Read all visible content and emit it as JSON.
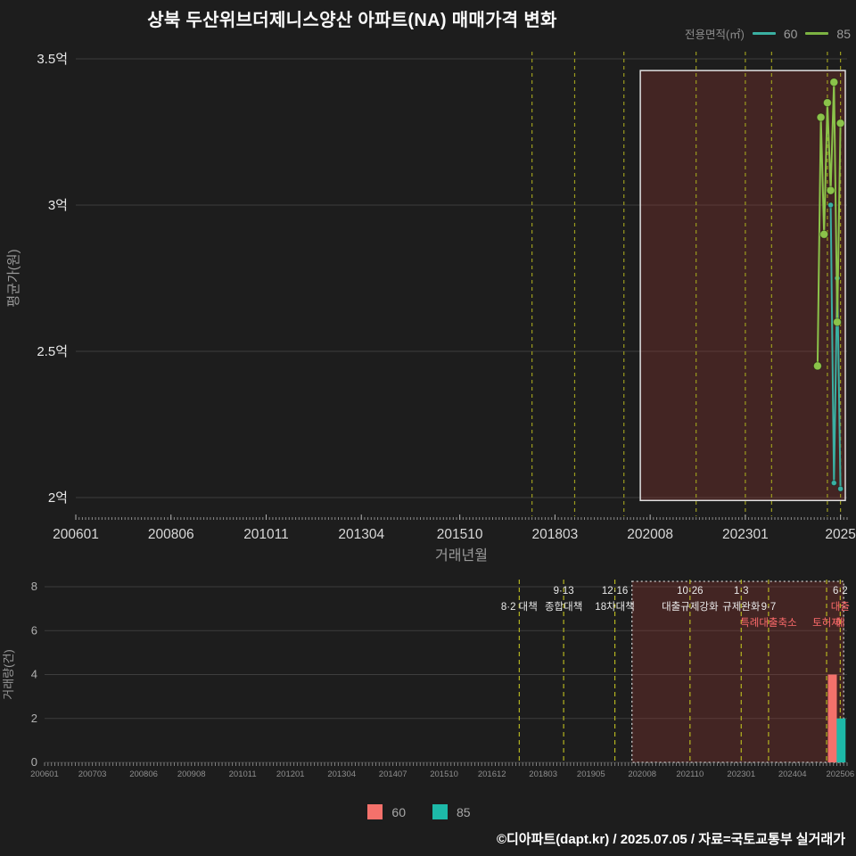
{
  "title": "상북 두산위브더제니스양산 아파트(NA) 매매가격 변화",
  "legend_top": {
    "label": "전용면적(㎡)",
    "items": [
      {
        "label": "60",
        "color": "#3ab0a2"
      },
      {
        "label": "85",
        "color": "#7cb342"
      }
    ]
  },
  "legend_bottom": {
    "items": [
      {
        "label": "60",
        "color": "#f4716b"
      },
      {
        "label": "85",
        "color": "#1db9a8"
      }
    ]
  },
  "footer": "©디아파트(dapt.kr) / 2025.07.05 / 자료=국토교통부 실거래가",
  "colors": {
    "background": "#1d1d1d",
    "gridline": "#3d3d3d",
    "policy_line": "#9c9c1e",
    "highlight_fill": "rgba(155,55,50,0.30)",
    "highlight_border": "#e0e0e0",
    "annotation_red": "#ff6b6b",
    "annotation_white": "#e8e8e8"
  },
  "events": [
    {
      "month": 201708,
      "lines": [
        {
          "row": 2,
          "text": "8·2 대책",
          "color": "#e8e8e8"
        }
      ]
    },
    {
      "month": 201809,
      "lines": [
        {
          "row": 1,
          "text": "9·13",
          "color": "#e8e8e8"
        },
        {
          "row": 2,
          "text": "종합대책",
          "color": "#e8e8e8"
        }
      ]
    },
    {
      "month": 201912,
      "lines": [
        {
          "row": 1,
          "text": "12·16",
          "color": "#e8e8e8"
        },
        {
          "row": 2,
          "text": "18차대책",
          "color": "#e8e8e8"
        }
      ]
    },
    {
      "month": 202110,
      "lines": [
        {
          "row": 1,
          "text": "10·26",
          "color": "#e8e8e8"
        },
        {
          "row": 2,
          "text": "대출규제강화",
          "color": "#e8e8e8"
        }
      ]
    },
    {
      "month": 202301,
      "lines": [
        {
          "row": 1,
          "text": "1·3",
          "color": "#e8e8e8"
        },
        {
          "row": 2,
          "text": "규제완화",
          "color": "#e8e8e8"
        }
      ]
    },
    {
      "month": 202309,
      "lines": [
        {
          "row": 2,
          "text": "9·7",
          "color": "#e8e8e8"
        },
        {
          "row": 3,
          "text": "특례대출축소",
          "color": "#ff6b6b"
        }
      ]
    },
    {
      "month": 202502,
      "lines": [
        {
          "row": 3,
          "text": "토허제",
          "color": "#ff6b6b"
        }
      ]
    },
    {
      "month": 202506,
      "lines": [
        {
          "row": 1,
          "text": "6·2",
          "color": "#e8e8e8"
        },
        {
          "row": 2,
          "text": "대출",
          "color": "#ff6b6b"
        },
        {
          "row": 3,
          "text": "해",
          "color": "#ff6b6b"
        }
      ]
    }
  ],
  "chart_data": [
    {
      "type": "line",
      "title": "",
      "xlabel": "거래년월",
      "ylabel": "평균가(원)",
      "x_domain": [
        200601,
        202508
      ],
      "ylim": [
        1.95,
        3.55
      ],
      "grid": true,
      "legend_position": "top-right",
      "y_ticks": [
        {
          "value": 2.0,
          "label": "2억"
        },
        {
          "value": 2.5,
          "label": "2.5억"
        },
        {
          "value": 3.0,
          "label": "3억"
        },
        {
          "value": 3.5,
          "label": "3.5억"
        }
      ],
      "x_ticks": [
        {
          "value": 200601,
          "label": "200601"
        },
        {
          "value": 200806,
          "label": "200806"
        },
        {
          "value": 201011,
          "label": "201011"
        },
        {
          "value": 201304,
          "label": "201304"
        },
        {
          "value": 201510,
          "label": "201510"
        },
        {
          "value": 201803,
          "label": "201803"
        },
        {
          "value": 202008,
          "label": "202008"
        },
        {
          "value": 202301,
          "label": "202301"
        },
        {
          "value": 202506,
          "label": "2025"
        }
      ],
      "highlight": {
        "x0": 202005,
        "x1": 202508,
        "y0": 1.99,
        "y1": 3.46
      },
      "series": [
        {
          "name": "60",
          "color": "#3ab0a2",
          "points": [
            [
              202503,
              3.0
            ],
            [
              202504,
              2.05
            ],
            [
              202505,
              2.75
            ],
            [
              202506,
              2.03
            ]
          ]
        },
        {
          "name": "85",
          "color": "#8bc34a",
          "points": [
            [
              202411,
              2.45
            ],
            [
              202412,
              3.3
            ],
            [
              202501,
              2.9
            ],
            [
              202502,
              3.35
            ],
            [
              202503,
              3.05
            ],
            [
              202504,
              3.42
            ],
            [
              202505,
              2.6
            ],
            [
              202506,
              3.28
            ]
          ]
        }
      ]
    },
    {
      "type": "bar",
      "xlabel": "",
      "ylabel": "거래량(건)",
      "x_domain": [
        200601,
        202508
      ],
      "ylim": [
        0,
        8
      ],
      "y_ticks": [
        0,
        2,
        4,
        6,
        8
      ],
      "x_ticks": [
        {
          "value": 200601,
          "label": "200601"
        },
        {
          "value": 200703,
          "label": "200703"
        },
        {
          "value": 200806,
          "label": "200806"
        },
        {
          "value": 200908,
          "label": "200908"
        },
        {
          "value": 201011,
          "label": "201011"
        },
        {
          "value": 201201,
          "label": "201201"
        },
        {
          "value": 201304,
          "label": "201304"
        },
        {
          "value": 201407,
          "label": "201407"
        },
        {
          "value": 201510,
          "label": "201510"
        },
        {
          "value": 201612,
          "label": "201612"
        },
        {
          "value": 201803,
          "label": "201803"
        },
        {
          "value": 201905,
          "label": "201905"
        },
        {
          "value": 202008,
          "label": "202008"
        },
        {
          "value": 202110,
          "label": "202110"
        },
        {
          "value": 202301,
          "label": "202301"
        },
        {
          "value": 202404,
          "label": "202404"
        },
        {
          "value": 202506,
          "label": "202506"
        }
      ],
      "highlight": {
        "x0": 202005,
        "x1": 202507,
        "y0": 0,
        "y1": 8.2
      },
      "bars": [
        {
          "series": "60",
          "month": 202505,
          "value": 4,
          "color": "#f4716b"
        },
        {
          "series": "85",
          "month": 202506,
          "value": 2,
          "color": "#1db9a8"
        }
      ]
    }
  ]
}
